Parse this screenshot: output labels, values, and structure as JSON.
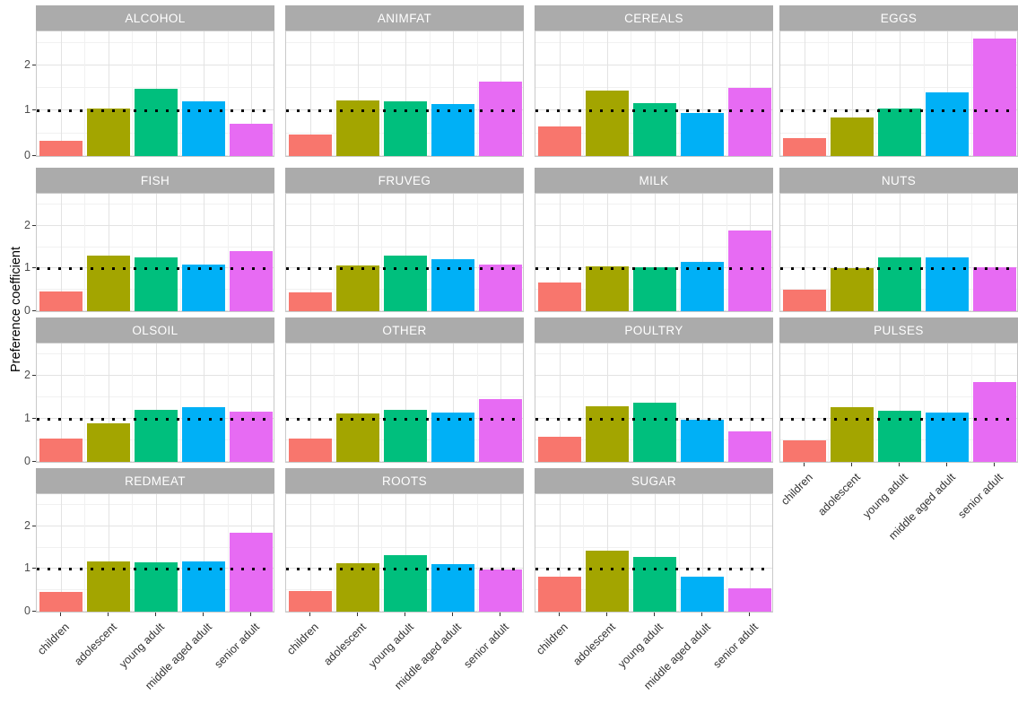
{
  "chart_data": {
    "type": "bar",
    "title": "",
    "ylabel": "Preference coefficient",
    "xlabel": "",
    "categories": [
      "children",
      "adolescent",
      "young adult",
      "middle aged adult",
      "senior adult"
    ],
    "yticks": [
      0,
      1,
      2
    ],
    "ylim": [
      0,
      2.75
    ],
    "reference_line_y": 1,
    "reference_line_style": "dotted",
    "grid": "on",
    "legend": "none",
    "bar_colors": [
      "#F8766D",
      "#A3A500",
      "#00BF7D",
      "#00B0F6",
      "#E76BF3"
    ],
    "strip_background": "#ababab",
    "strip_text_color": "#ffffff",
    "facets": [
      {
        "name": "ALCOHOL",
        "values": [
          0.33,
          1.05,
          1.48,
          1.2,
          0.72
        ]
      },
      {
        "name": "ANIMFAT",
        "values": [
          0.47,
          1.22,
          1.2,
          1.15,
          1.65
        ]
      },
      {
        "name": "CEREALS",
        "values": [
          0.65,
          1.45,
          1.17,
          0.95,
          1.5
        ]
      },
      {
        "name": "EGGS",
        "values": [
          0.4,
          0.85,
          1.05,
          1.4,
          2.6
        ]
      },
      {
        "name": "FISH",
        "values": [
          0.47,
          1.3,
          1.25,
          1.1,
          1.4
        ]
      },
      {
        "name": "FRUVEG",
        "values": [
          0.45,
          1.08,
          1.3,
          1.22,
          1.1
        ]
      },
      {
        "name": "MILK",
        "values": [
          0.67,
          1.05,
          1.03,
          1.15,
          1.9
        ]
      },
      {
        "name": "NUTS",
        "values": [
          0.5,
          1.0,
          1.27,
          1.25,
          1.02
        ]
      },
      {
        "name": "OLSOIL",
        "values": [
          0.55,
          0.9,
          1.2,
          1.28,
          1.17
        ]
      },
      {
        "name": "OTHER",
        "values": [
          0.55,
          1.13,
          1.2,
          1.15,
          1.45
        ]
      },
      {
        "name": "POULTRY",
        "values": [
          0.58,
          1.3,
          1.38,
          0.98,
          0.7
        ]
      },
      {
        "name": "PULSES",
        "values": [
          0.5,
          1.28,
          1.18,
          1.15,
          1.85
        ]
      },
      {
        "name": "REDMEAT",
        "values": [
          0.47,
          1.17,
          1.15,
          1.17,
          1.85
        ]
      },
      {
        "name": "ROOTS",
        "values": [
          0.48,
          1.13,
          1.33,
          1.12,
          0.98
        ]
      },
      {
        "name": "SUGAR",
        "values": [
          0.82,
          1.42,
          1.28,
          0.82,
          0.55
        ]
      }
    ]
  }
}
